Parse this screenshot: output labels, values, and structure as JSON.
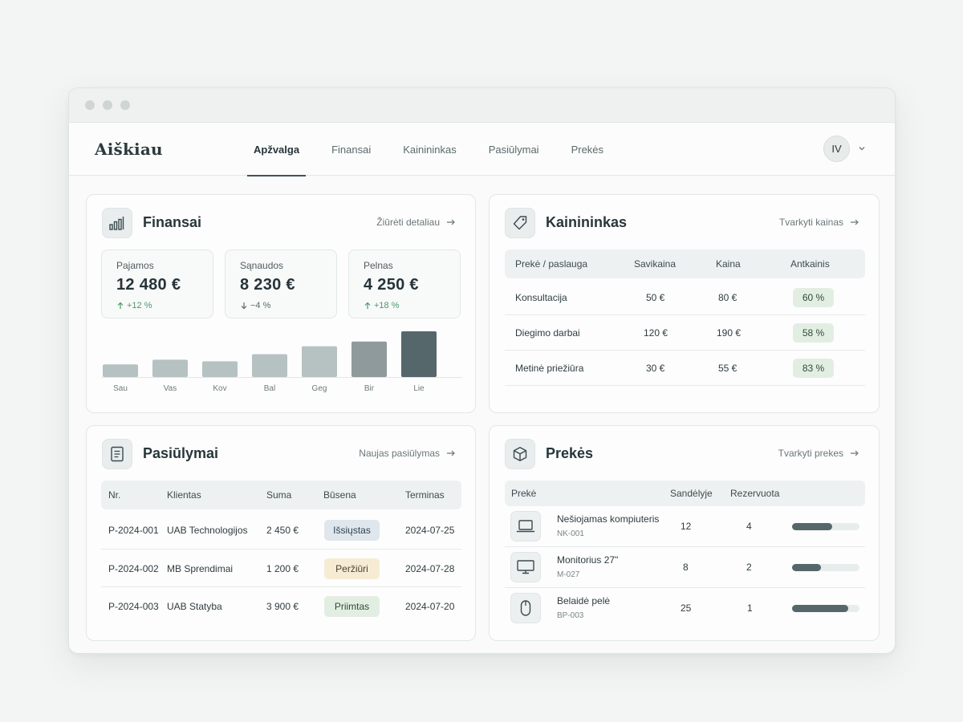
{
  "app": {
    "logo": "Aiškiau",
    "tabs": [
      {
        "label": "Apžvalga",
        "active": true
      },
      {
        "label": "Finansai",
        "active": false
      },
      {
        "label": "Kainininkas",
        "active": false
      },
      {
        "label": "Pasiūlymai",
        "active": false
      },
      {
        "label": "Prekės",
        "active": false
      }
    ],
    "user_initials": "IV"
  },
  "finansai": {
    "title": "Finansai",
    "link": "Žiūrėti detaliau",
    "kpis": [
      {
        "label": "Pajamos",
        "value": "12 480 €",
        "delta": "+12 %",
        "direction": "up"
      },
      {
        "label": "Sąnaudos",
        "value": "8 230 €",
        "delta": "−4 %",
        "direction": "down"
      },
      {
        "label": "Pelnas",
        "value": "4 250 €",
        "delta": "+18 %",
        "direction": "up"
      }
    ]
  },
  "chart_data": {
    "type": "bar",
    "categories": [
      "Sau",
      "Vas",
      "Kov",
      "Bal",
      "Geg",
      "Bir",
      "Lie"
    ],
    "values": [
      16,
      22,
      20,
      29,
      39,
      45,
      58
    ],
    "title": "",
    "xlabel": "",
    "ylabel": "",
    "ylim": [
      0,
      60
    ],
    "colors": {
      "bar": "#b6c1c2",
      "highlight": "#56676b"
    },
    "grid": false
  },
  "kainininkas": {
    "title": "Kainininkas",
    "link": "Tvarkyti kainas",
    "columns": [
      "Prekė / paslauga",
      "Savikaina",
      "Kaina",
      "Antkainis"
    ],
    "rows": [
      {
        "name": "Konsultacija",
        "cost": "50 €",
        "price": "80 €",
        "markup": "60 %"
      },
      {
        "name": "Diegimo darbai",
        "cost": "120 €",
        "price": "190 €",
        "markup": "58 %"
      },
      {
        "name": "Metinė priežiūra",
        "cost": "30 €",
        "price": "55 €",
        "markup": "83 %"
      }
    ]
  },
  "pasiulymai": {
    "title": "Pasiūlymai",
    "link": "Naujas pasiūlymas",
    "columns": [
      "Nr.",
      "Klientas",
      "Suma",
      "Būsena",
      "Terminas"
    ],
    "rows": [
      {
        "nr": "P-2024-001",
        "client": "UAB Technologijos",
        "sum": "2 450 €",
        "status": "Išsiųstas",
        "status_color": "blue",
        "due": "2024-07-25"
      },
      {
        "nr": "P-2024-002",
        "client": "MB Sprendimai",
        "sum": "1 200 €",
        "status": "Peržiūri",
        "status_color": "amber",
        "due": "2024-07-28"
      },
      {
        "nr": "P-2024-003",
        "client": "UAB Statyba",
        "sum": "3 900 €",
        "status": "Priimtas",
        "status_color": "green",
        "due": "2024-07-20"
      }
    ]
  },
  "prekes": {
    "title": "Prekės",
    "link": "Tvarkyti prekes",
    "columns": [
      "Prekė",
      "Sandėlyje",
      "Rezervuota"
    ],
    "rows": [
      {
        "name": "Nešiojamas kompiuteris",
        "sku": "NK-001",
        "stock": "12",
        "reserved": "4",
        "icon": "laptop-icon",
        "level": 0.6
      },
      {
        "name": "Monitorius 27\"",
        "sku": "M-027",
        "stock": "8",
        "reserved": "2",
        "icon": "monitor-icon",
        "level": 0.43
      },
      {
        "name": "Belaidė pelė",
        "sku": "BP-003",
        "stock": "25",
        "reserved": "1",
        "icon": "mouse-icon",
        "level": 0.83
      }
    ]
  }
}
